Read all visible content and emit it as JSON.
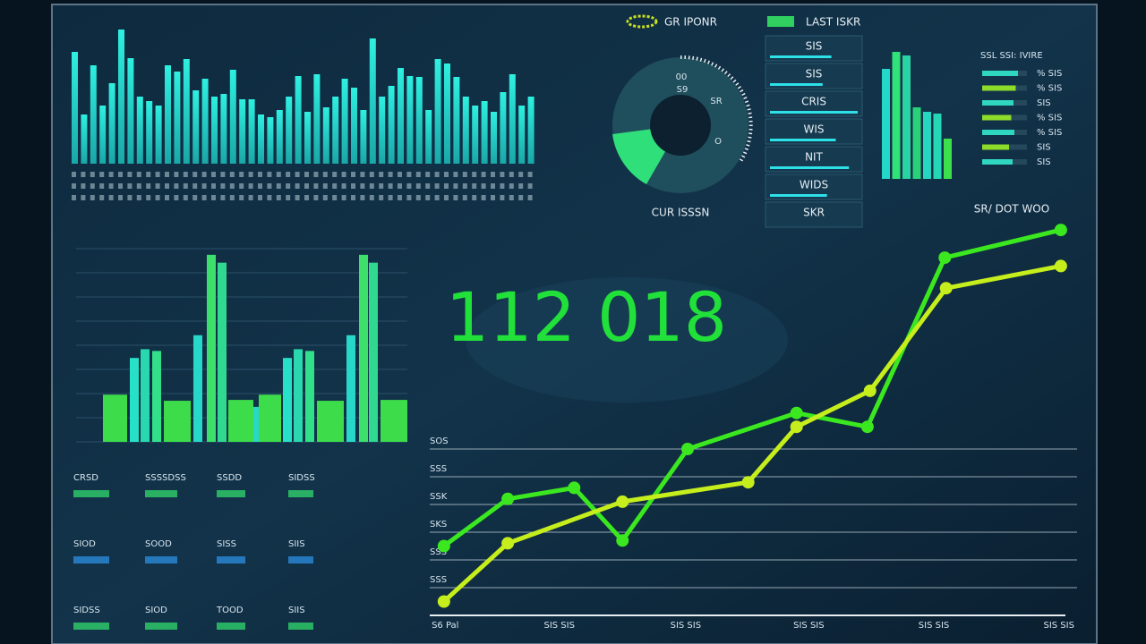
{
  "gauge": {
    "title": "GR IPONR",
    "label": "CUR ISSSN",
    "inner": [
      "00",
      "S9",
      "SR",
      "O"
    ]
  },
  "list_panel": {
    "title": "LAST ISKR",
    "items": [
      {
        "label": "SIS",
        "fill": 70
      },
      {
        "label": "SIS",
        "fill": 60
      },
      {
        "label": "CRIS",
        "fill": 100
      },
      {
        "label": "WIS",
        "fill": 75
      },
      {
        "label": "NIT",
        "fill": 90
      },
      {
        "label": "WIDS",
        "fill": 65
      },
      {
        "label": "SKR",
        "fill": 0
      }
    ]
  },
  "top_bars": {
    "color": "#22d8d0",
    "values": [
      125,
      55,
      110,
      65,
      90,
      150,
      118,
      75,
      70,
      65,
      110,
      103,
      117,
      82,
      95,
      75,
      78,
      105,
      72,
      72,
      55,
      52,
      60,
      75,
      98,
      58,
      100,
      63,
      75,
      95,
      85,
      60,
      140,
      75,
      87,
      107,
      98,
      97,
      60,
      117,
      112,
      97,
      75,
      65,
      70,
      58,
      80,
      100,
      65,
      75
    ]
  },
  "mini_bars": {
    "values": [
      123,
      142,
      138,
      80,
      75,
      73,
      45
    ],
    "colors": [
      "#25d7c9",
      "#2fe27a",
      "#2ad3a4",
      "#29d17a",
      "#27d6c0",
      "#26d7b5",
      "#3ce04a"
    ]
  },
  "right_list": {
    "header": "SSL SSI: IVIRE",
    "rows": [
      {
        "value": "% SIS",
        "fill": 80
      },
      {
        "value": "% SIS",
        "fill": 75
      },
      {
        "value": "SIS",
        "fill": 70
      },
      {
        "value": "% SIS",
        "fill": 65
      },
      {
        "value": "% SIS",
        "fill": 72
      },
      {
        "value": "SIS",
        "fill": 60
      },
      {
        "value": "SIS",
        "fill": 68
      }
    ],
    "footer": "SR/ DOT WOO"
  },
  "mid_bars": {
    "ylim": [
      0,
      220
    ],
    "values": [
      54,
      96,
      106,
      104,
      47,
      122,
      214,
      205,
      48,
      40,
      54,
      96,
      106,
      104,
      47,
      122,
      214,
      205,
      48
    ],
    "colors": [
      "#3ddc4a",
      "#27e0c8",
      "#2ad8b0",
      "#33e08a",
      "#3ddc4a",
      "#27d8c8",
      "#3de06a",
      "#30d890",
      "#3ddc4a",
      "#27d8c8",
      "#3ddc4a",
      "#27e0c8",
      "#2ad8b0",
      "#33e08a",
      "#3ddc4a",
      "#27d8c8",
      "#3de06a",
      "#30d890",
      "#3ddc4a"
    ]
  },
  "headline": "112 018",
  "bottom_left": {
    "labels": [
      "CRSD",
      "SSSSDSS",
      "SSDD",
      "SIDSS",
      "SIOD",
      "SOOD",
      "SISS",
      "SIIS",
      "SIDSS",
      "SIOD",
      "TOOD",
      "SIIS"
    ]
  },
  "chart_data": {
    "type": "line",
    "xlim": [
      0,
      100
    ],
    "ylim": [
      0,
      14
    ],
    "xticks": [
      {
        "value": 2.4,
        "label": "S6 Pal"
      },
      {
        "value": 20.1,
        "label": "SIS SIS"
      },
      {
        "value": 39.7,
        "label": "SIS SIS"
      },
      {
        "value": 58.8,
        "label": "SIS SIS"
      },
      {
        "value": 78.2,
        "label": "SIS SIS"
      },
      {
        "value": 97.6,
        "label": "SIS SIS"
      }
    ],
    "yticks": [
      {
        "value": 1,
        "label": "SSS"
      },
      {
        "value": 2,
        "label": "SSS"
      },
      {
        "value": 3,
        "label": "SKS"
      },
      {
        "value": 4,
        "label": "SSK"
      },
      {
        "value": 5,
        "label": "SSS"
      },
      {
        "value": 6,
        "label": "SOS"
      }
    ],
    "grid": true,
    "series": [
      {
        "color": "#3be820",
        "x": [
          2.2,
          12.1,
          22.4,
          29.9,
          40,
          56.9,
          67.9,
          79.9,
          97.9
        ],
        "values": [
          2.5,
          4.2,
          4.6,
          2.7,
          6,
          7.3,
          6.8,
          12.9,
          13.9
        ]
      },
      {
        "color": "#c6ee1c",
        "x": [
          2.2,
          12.1,
          29.9,
          49.4,
          56.9,
          68.3,
          80.1,
          97.9
        ],
        "values": [
          0.5,
          2.6,
          4.1,
          4.8,
          6.8,
          8.1,
          11.8,
          12.6
        ]
      }
    ]
  }
}
